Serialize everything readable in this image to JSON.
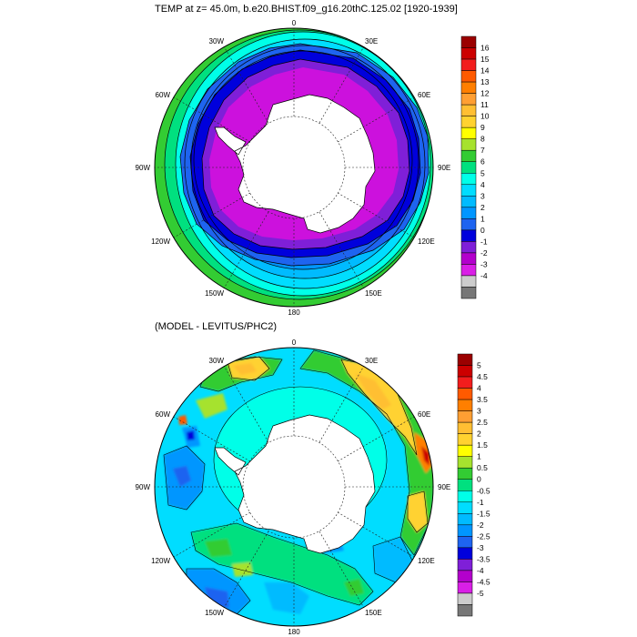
{
  "panel_top": {
    "title": "TEMP at z=  45.0m, b.e20.BHIST.f09_g16.20thC.125.02 [1920-1939]",
    "lon_labels": [
      "0",
      "30E",
      "60E",
      "90E",
      "120E",
      "150E",
      "180",
      "150W",
      "120W",
      "90W",
      "60W",
      "30W"
    ],
    "colorbar": {
      "labels": [
        "16",
        "15",
        "14",
        "13",
        "12",
        "11",
        "10",
        "9",
        "8",
        "7",
        "6",
        "5",
        "4",
        "3",
        "2",
        "1",
        "0",
        "-1",
        "-2",
        "-3",
        "-4"
      ],
      "colors": [
        "#9b0000",
        "#cc0000",
        "#f21d1d",
        "#ff5a00",
        "#ff7f00",
        "#ff9f33",
        "#ffbf33",
        "#ffd230",
        "#ffff00",
        "#a6e22e",
        "#33cc33",
        "#00e07f",
        "#00ffe8",
        "#00ddff",
        "#00bbff",
        "#0096ff",
        "#1e64f0",
        "#0000dc",
        "#7f1fd8",
        "#b300cc",
        "#d91fe6",
        "#cccccc",
        "#777777"
      ]
    }
  },
  "panel_bottom": {
    "title": "(MODEL - LEVITUS/PHC2)",
    "lon_labels": [
      "0",
      "30E",
      "60E",
      "90E",
      "120E",
      "150E",
      "180",
      "150W",
      "120W",
      "90W",
      "60W",
      "30W"
    ],
    "colorbar": {
      "labels": [
        "5",
        "4.5",
        "4",
        "3.5",
        "3",
        "2.5",
        "2",
        "1.5",
        "1",
        "0.5",
        "0",
        "-0.5",
        "-1",
        "-1.5",
        "-2",
        "-2.5",
        "-3",
        "-3.5",
        "-4",
        "-4.5",
        "-5"
      ],
      "colors": [
        "#9b0000",
        "#cc0000",
        "#f21d1d",
        "#ff5a00",
        "#ff7f00",
        "#ff9f33",
        "#ffbf33",
        "#ffd230",
        "#ffff00",
        "#a6e22e",
        "#33cc33",
        "#00e07f",
        "#00ffe8",
        "#00ddff",
        "#00bbff",
        "#0096ff",
        "#1e64f0",
        "#0000dc",
        "#7f1fd8",
        "#b300cc",
        "#d91fe6",
        "#cccccc",
        "#777777"
      ]
    }
  }
}
